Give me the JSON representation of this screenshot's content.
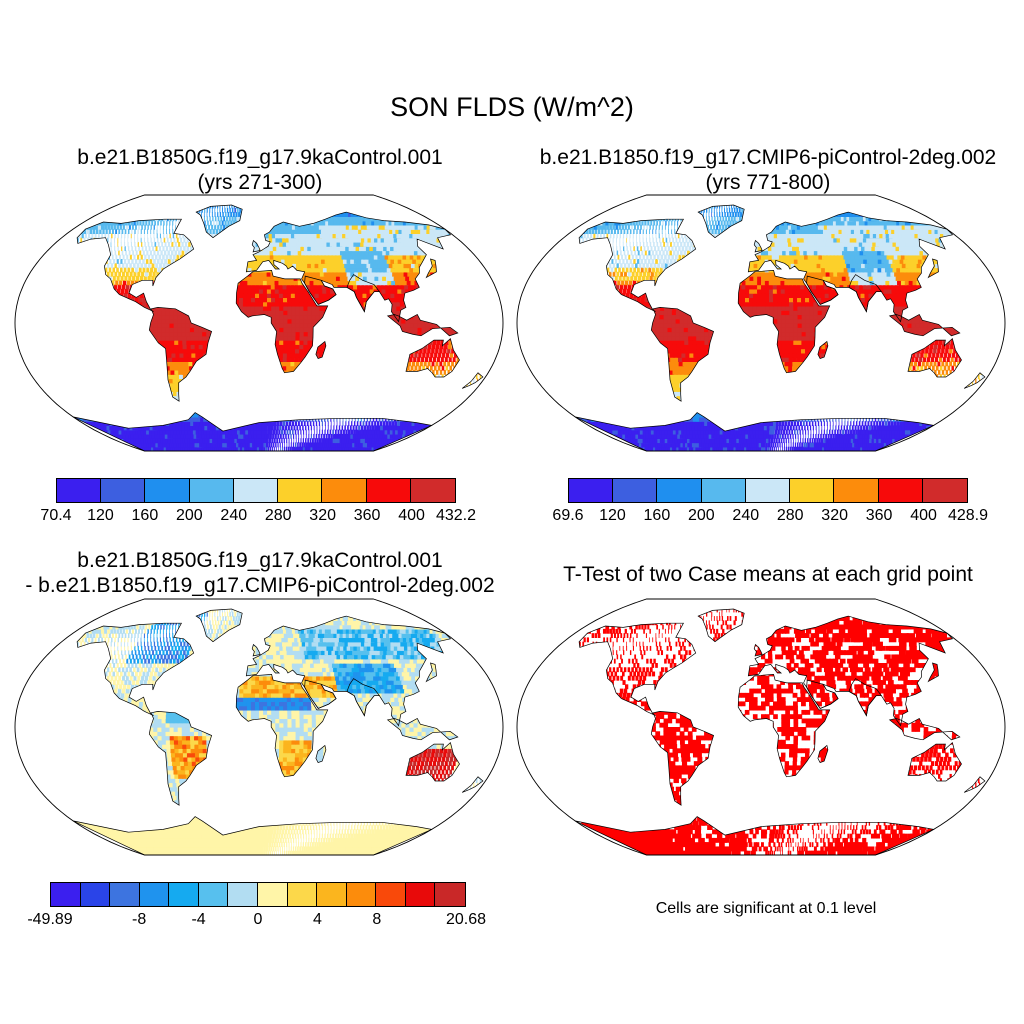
{
  "figure_title": "SON FLDS (W/m^2)",
  "panels": [
    {
      "title_line1": "b.e21.B1850G.f19_g17.9kaControl.001",
      "title_line2": "(yrs 271-300)",
      "colorbar": {
        "colors": [
          "#3b1fef",
          "#3d5fe0",
          "#1f8fef",
          "#57b9ee",
          "#cbe7f7",
          "#fcd02a",
          "#fc8c0c",
          "#f70a0a",
          "#d12b2b"
        ],
        "labels": [
          "70.4",
          "120",
          "160",
          "200",
          "240",
          "280",
          "320",
          "360",
          "400",
          "432.2"
        ]
      }
    },
    {
      "title_line1": "b.e21.B1850.f19_g17.CMIP6-piControl-2deg.002",
      "title_line2": "(yrs 771-800)",
      "colorbar": {
        "colors": [
          "#3b1fef",
          "#3d5fe0",
          "#1f8fef",
          "#57b9ee",
          "#cbe7f7",
          "#fcd02a",
          "#fc8c0c",
          "#f70a0a",
          "#d12b2b"
        ],
        "labels": [
          "69.6",
          "120",
          "160",
          "200",
          "240",
          "280",
          "320",
          "360",
          "400",
          "428.9"
        ]
      }
    },
    {
      "title_line1": "b.e21.B1850G.f19_g17.9kaControl.001",
      "title_line2": "- b.e21.B1850.f19_g17.CMIP6-piControl-2deg.002",
      "colorbar": {
        "colors": [
          "#3b1fef",
          "#2a44e8",
          "#3d74e0",
          "#1f93ee",
          "#15aaf0",
          "#57c0ee",
          "#b2ddf2",
          "#fff5a8",
          "#fcd84a",
          "#fbb51e",
          "#fc8c0c",
          "#f9490a",
          "#e80a0a",
          "#c92828"
        ],
        "labels": [
          "-49.89",
          "-8",
          "-4",
          "0",
          "4",
          "8",
          "20.68"
        ]
      }
    },
    {
      "title_line1": "T-Test of two Case means at each grid point",
      "note": "Cells are significant at 0.1 level",
      "significance_color": "#ff0000"
    }
  ]
}
